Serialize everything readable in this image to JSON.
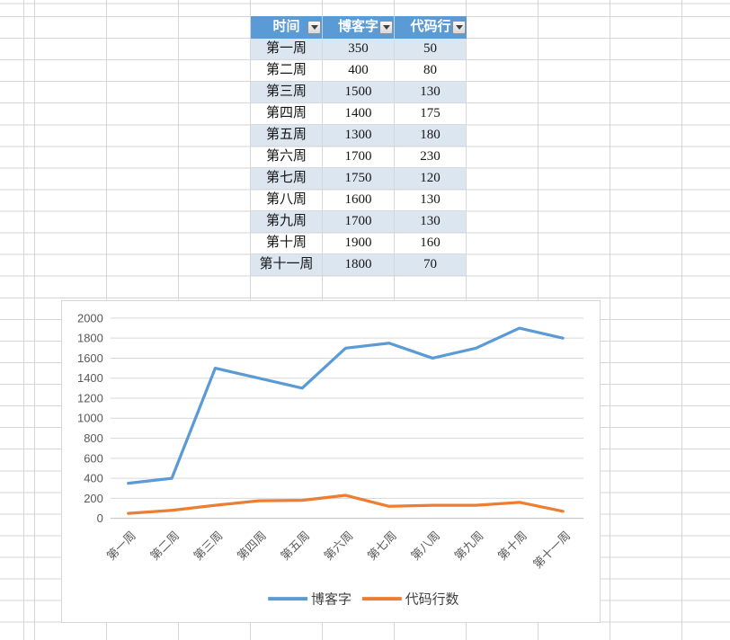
{
  "spreadsheet": {
    "grid_color": "#d6d6d6"
  },
  "table": {
    "header": {
      "cells": [
        "时间",
        "博客字",
        "代码行"
      ],
      "bg_color": "#5B9BD5",
      "text_color": "#FFFFFF",
      "filter_icon": "filter-dropdown"
    },
    "band_color": "#DCE6F1",
    "rows": [
      [
        "第一周",
        "350",
        "50"
      ],
      [
        "第二周",
        "400",
        "80"
      ],
      [
        "第三周",
        "1500",
        "130"
      ],
      [
        "第四周",
        "1400",
        "175"
      ],
      [
        "第五周",
        "1300",
        "180"
      ],
      [
        "第六周",
        "1700",
        "230"
      ],
      [
        "第七周",
        "1750",
        "120"
      ],
      [
        "第八周",
        "1600",
        "130"
      ],
      [
        "第九周",
        "1700",
        "130"
      ],
      [
        "第十周",
        "1900",
        "160"
      ],
      [
        "第十一周",
        "1800",
        "70"
      ]
    ]
  },
  "chart_data": {
    "type": "line",
    "title": "",
    "categories": [
      "第一周",
      "第二周",
      "第三周",
      "第四周",
      "第五周",
      "第六周",
      "第七周",
      "第八周",
      "第九周",
      "第十周",
      "第十一周"
    ],
    "series": [
      {
        "name": "博客字",
        "color": "#5B9BD5",
        "values": [
          350,
          400,
          1500,
          1400,
          1300,
          1700,
          1750,
          1600,
          1700,
          1900,
          1800
        ]
      },
      {
        "name": "代码行数",
        "color": "#ED7D31",
        "values": [
          50,
          80,
          130,
          175,
          180,
          230,
          120,
          130,
          130,
          160,
          70
        ]
      }
    ],
    "xlabel": "",
    "ylabel": "",
    "ylim": [
      0,
      2000
    ],
    "ytick_step": 200,
    "grid": true,
    "legend_position": "bottom",
    "gridline_color": "#D9D9D9",
    "axis_line_color": "#BFBFBF",
    "axis_text_color": "#595959"
  }
}
